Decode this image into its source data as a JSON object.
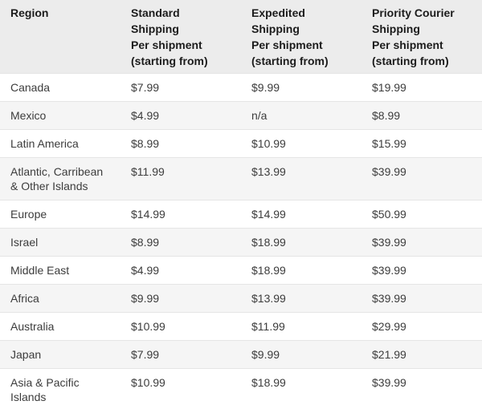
{
  "colors": {
    "page_background": "#ffffff",
    "header_background": "#ececec",
    "header_text": "#1c1c1c",
    "body_text": "#3c3c3c",
    "row_alt_background": "#f5f5f5",
    "row_border": "#e5e5e5",
    "table_bottom_border": "#dcdcdc"
  },
  "table": {
    "columns": [
      {
        "key": "region",
        "label": "Region"
      },
      {
        "key": "standard",
        "label": "Standard\nShipping\nPer shipment\n(starting from)"
      },
      {
        "key": "expedited",
        "label": "Expedited\nShipping\nPer shipment\n(starting from)"
      },
      {
        "key": "priority",
        "label": "Priority Courier\nShipping\nPer shipment\n(starting from)"
      }
    ],
    "rows": [
      {
        "region": "Canada",
        "standard": "$7.99",
        "expedited": "$9.99",
        "priority": "$19.99"
      },
      {
        "region": "Mexico",
        "standard": "$4.99",
        "expedited": "n/a",
        "priority": "$8.99"
      },
      {
        "region": "Latin America",
        "standard": "$8.99",
        "expedited": "$10.99",
        "priority": "$15.99"
      },
      {
        "region": "Atlantic, Carribean & Other Islands",
        "standard": "$11.99",
        "expedited": "$13.99",
        "priority": "$39.99"
      },
      {
        "region": "Europe",
        "standard": "$14.99",
        "expedited": "$14.99",
        "priority": "$50.99"
      },
      {
        "region": "Israel",
        "standard": "$8.99",
        "expedited": "$18.99",
        "priority": "$39.99"
      },
      {
        "region": "Middle East",
        "standard": "$4.99",
        "expedited": "$18.99",
        "priority": "$39.99"
      },
      {
        "region": "Africa",
        "standard": "$9.99",
        "expedited": "$13.99",
        "priority": "$39.99"
      },
      {
        "region": "Australia",
        "standard": "$10.99",
        "expedited": "$11.99",
        "priority": "$29.99"
      },
      {
        "region": "Japan",
        "standard": "$7.99",
        "expedited": "$9.99",
        "priority": "$21.99"
      },
      {
        "region": "Asia & Pacific Islands",
        "standard": "$10.99",
        "expedited": "$18.99",
        "priority": "$39.99"
      }
    ]
  }
}
